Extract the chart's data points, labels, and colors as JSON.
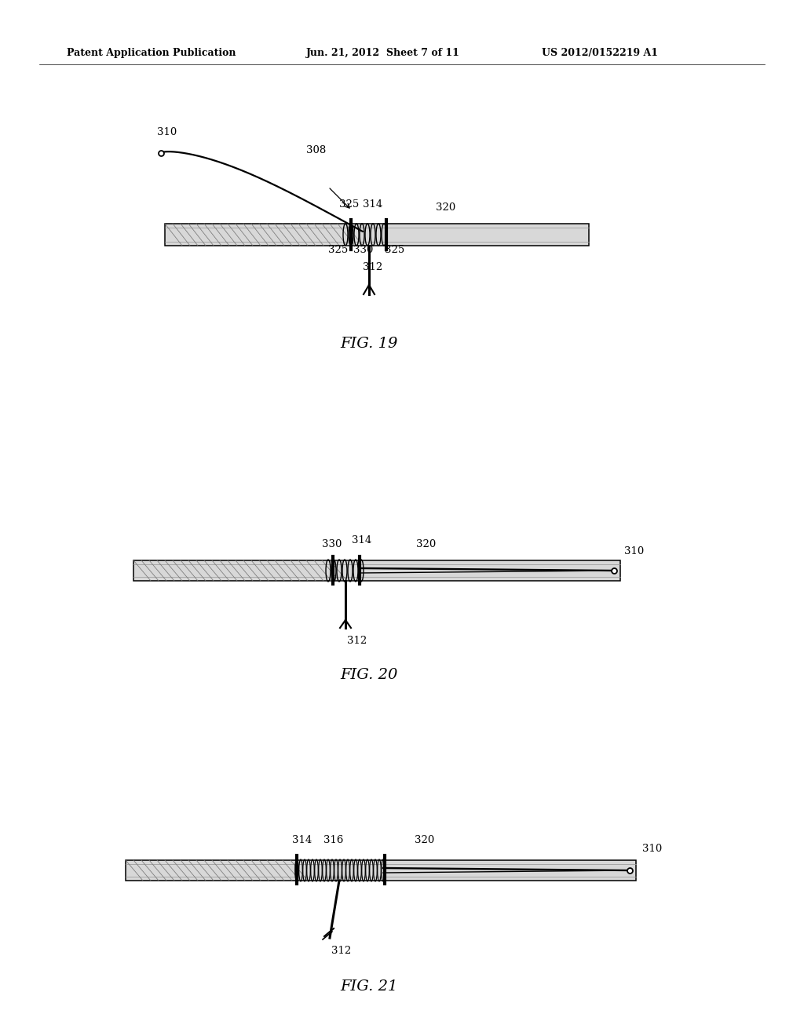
{
  "background_color": "#ffffff",
  "header_left": "Patent Application Publication",
  "header_center": "Jun. 21, 2012  Sheet 7 of 11",
  "header_right": "US 2012/0152219 A1",
  "fig19_label": "FIG. 19",
  "fig20_label": "FIG. 20",
  "fig21_label": "FIG. 21",
  "text_color": "#000000",
  "line_color": "#000000"
}
